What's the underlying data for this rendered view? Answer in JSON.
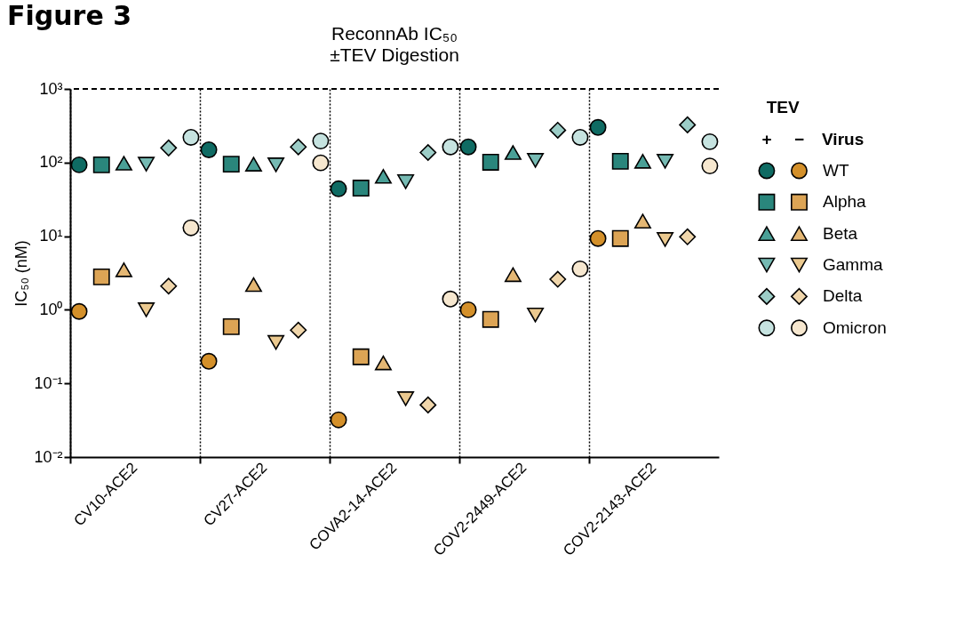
{
  "chart_data": {
    "type": "scatter",
    "title": "ReconnAb IC₅₀",
    "subtitle": "±TEV Digestion",
    "ylabel": "IC₅₀ (nM)",
    "legend_title": "TEV",
    "annotations": [
      "Figure 3",
      "+",
      "−",
      "Virus"
    ],
    "categories": [
      "CV10-ACE2",
      "CV27-ACE2",
      "COVA2-14-ACE2",
      "COV2-2449-ACE2",
      "COV2-2143-ACE2"
    ],
    "log": "y",
    "ylim": [
      0.01,
      1000
    ],
    "yticks": [
      {
        "value": 0.01,
        "label": "10⁻²"
      },
      {
        "value": 0.1,
        "label": "10⁻¹"
      },
      {
        "value": 1,
        "label": "10⁰"
      },
      {
        "value": 10,
        "label": "10¹"
      },
      {
        "value": 100,
        "label": "10²"
      },
      {
        "value": 1000,
        "label": "10³"
      }
    ],
    "grid": "x",
    "legend": "right",
    "ref_lines": [
      {
        "axis": "y",
        "value": 1000,
        "line_style": "dashed",
        "color": "#000000"
      }
    ],
    "series": [
      {
        "color": "#0f6b63",
        "marker": "circle",
        "values": [
          93,
          149,
          44,
          163,
          300
        ]
      },
      {
        "color": "#2a867c",
        "marker": "square",
        "values": [
          93,
          95,
          45,
          101,
          104
        ]
      },
      {
        "color": "#4aa097",
        "marker": "triangle",
        "values": [
          98,
          95,
          65,
          137,
          104
        ]
      },
      {
        "color": "#76bab3",
        "marker": "triangle-down",
        "values": [
          95,
          93,
          55,
          107,
          104
        ]
      },
      {
        "color": "#9ccdc7",
        "marker": "diamond",
        "values": [
          158,
          163,
          137,
          275,
          325
        ]
      },
      {
        "color": "#c6e3e0",
        "marker": "circle",
        "values": [
          220,
          196,
          163,
          220,
          192
        ]
      },
      {
        "name": "WT",
        "color": "#d4902a",
        "marker": "circle",
        "values": [
          0.95,
          0.2,
          0.032,
          1.0,
          9.3
        ]
      },
      {
        "name": "Alpha",
        "color": "#dca455",
        "marker": "square",
        "values": [
          2.8,
          0.59,
          0.23,
          0.74,
          9.3
        ]
      },
      {
        "name": "Beta",
        "color": "#e4b774",
        "marker": "triangle",
        "values": [
          3.5,
          2.2,
          0.19,
          3.0,
          16
        ]
      },
      {
        "name": "Gamma",
        "color": "#ebc98f",
        "marker": "triangle-down",
        "values": [
          1.0,
          0.36,
          0.062,
          0.85,
          9.0
        ]
      },
      {
        "name": "Delta",
        "color": "#f0d6ab",
        "marker": "diamond",
        "values": [
          2.1,
          0.53,
          0.051,
          2.6,
          9.8
        ]
      },
      {
        "name": "Omicron",
        "color": "#f6e7cf",
        "marker": "circle",
        "values": [
          13,
          99,
          1.4,
          3.6,
          90
        ]
      }
    ]
  }
}
